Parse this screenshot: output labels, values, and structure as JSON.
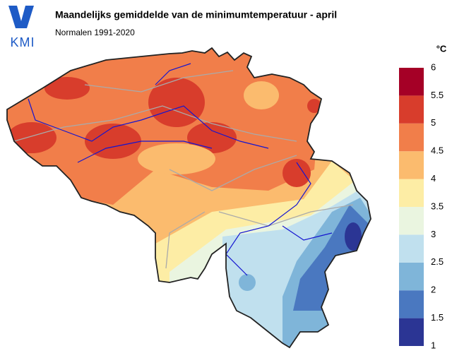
{
  "header": {
    "logo": "KMI",
    "title": "Maandelijks gemiddelde van de minimumtemperatuur - april",
    "subtitle": "Normalen 1991-2020"
  },
  "chart_data": {
    "type": "map",
    "legend": {
      "title": "°C",
      "bins": [
        1,
        1.5,
        2,
        2.5,
        3,
        3.5,
        4,
        4.5,
        5,
        5.5,
        6
      ],
      "colors": [
        "#2b3594",
        "#4a78c0",
        "#7fb5d9",
        "#c0e0ee",
        "#eaf5e0",
        "#fdeda5",
        "#fbbb6e",
        "#f17e4a",
        "#d83d2c",
        "#a50026"
      ],
      "ticks": [
        1,
        1.5,
        2,
        2.5,
        3,
        3.5,
        4,
        4.5,
        5,
        5.5,
        6
      ]
    }
  }
}
